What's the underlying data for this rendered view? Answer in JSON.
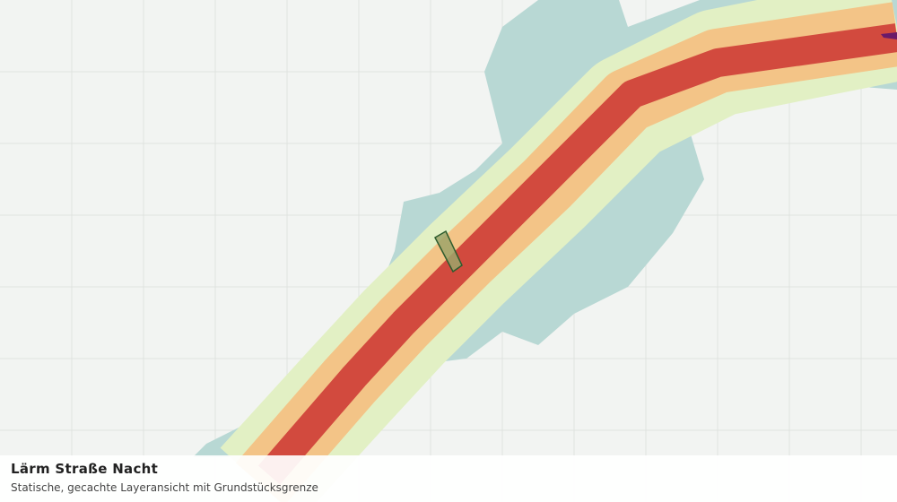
{
  "panel": {
    "title": "Lärm Straße Nacht",
    "subtitle": "Statische, gecachte Layeransicht mit Grundstücksgrenze"
  }
}
